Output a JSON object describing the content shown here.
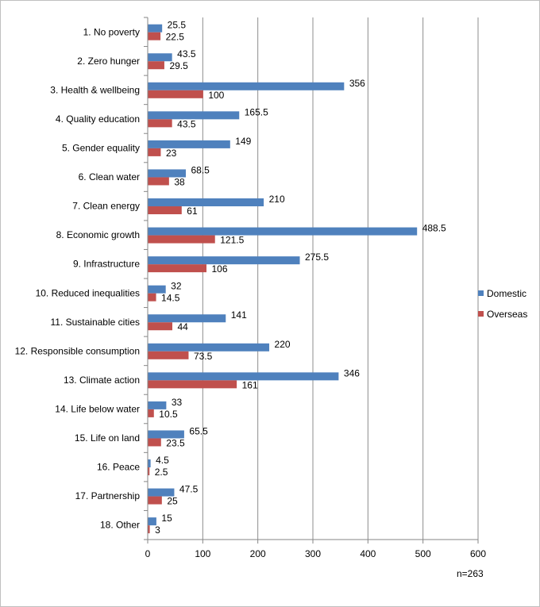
{
  "chart_data": {
    "type": "bar",
    "orientation": "horizontal",
    "categories": [
      "1. No poverty",
      "2. Zero hunger",
      "3. Health & wellbeing",
      "4. Quality education",
      "5. Gender equality",
      "6. Clean water",
      "7. Clean energy",
      "8. Economic growth",
      "9. Infrastructure",
      "10. Reduced inequalities",
      "11. Sustainable cities",
      "12. Responsible consumption",
      "13. Climate  action",
      "14. Life below water",
      "15. Life on land",
      "16. Peace",
      "17. Partnership",
      "18. Other"
    ],
    "series": [
      {
        "name": "Domestic",
        "color": "#4f81bd",
        "values": [
          25.5,
          43.5,
          356,
          165.5,
          149,
          68.5,
          210,
          488.5,
          275.5,
          32,
          141,
          220,
          346,
          33,
          65.5,
          4.5,
          47.5,
          15
        ]
      },
      {
        "name": "Overseas",
        "color": "#c0504d",
        "values": [
          22.5,
          29.5,
          100,
          43.5,
          23,
          38,
          61,
          121.5,
          106,
          14.5,
          44,
          73.5,
          161,
          10.5,
          23.5,
          2.5,
          25,
          3
        ]
      }
    ],
    "xlim": [
      0,
      600
    ],
    "xticks": [
      0,
      100,
      200,
      300,
      400,
      500,
      600
    ],
    "grid": "vertical-major",
    "legend": "right",
    "note": "n=263"
  }
}
